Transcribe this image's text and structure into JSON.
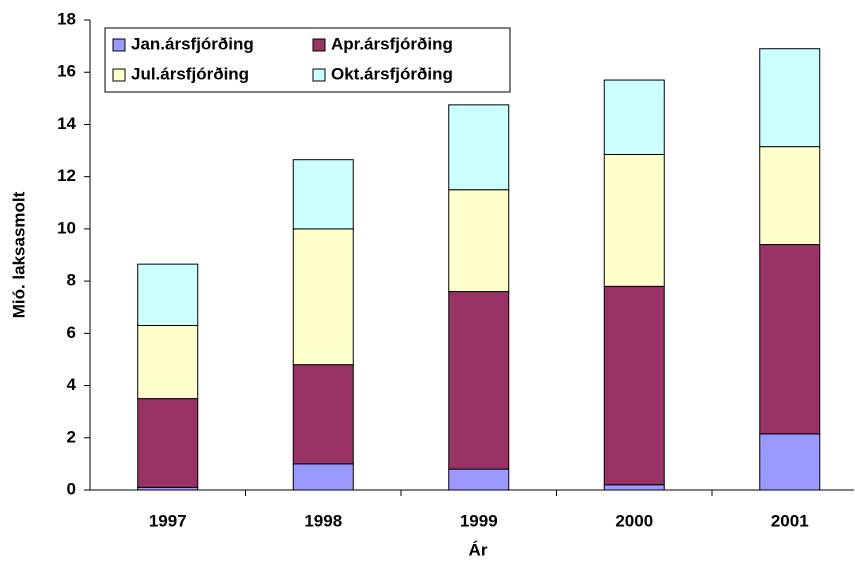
{
  "chart_data": {
    "type": "stacked_bar",
    "x_label": "Ár",
    "y_label": "Mió. laksasmolt",
    "categories": [
      "1997",
      "1998",
      "1999",
      "2000",
      "2001"
    ],
    "series": [
      {
        "name": "Jan.ársfjórðing",
        "color": "#9999ff",
        "values": [
          0.1,
          1.0,
          0.8,
          0.2,
          2.15
        ]
      },
      {
        "name": "Apr.ársfjórðing",
        "color": "#993366",
        "values": [
          3.4,
          3.8,
          6.8,
          7.6,
          7.25
        ]
      },
      {
        "name": "Jul.ársfjórðing",
        "color": "#ffffcc",
        "values": [
          2.8,
          5.2,
          3.9,
          5.05,
          3.75
        ]
      },
      {
        "name": "Okt.ársfjórðing",
        "color": "#ccffff",
        "values": [
          2.35,
          2.65,
          3.25,
          2.85,
          3.75
        ]
      }
    ],
    "ylim": [
      0,
      18
    ],
    "yticks": [
      0,
      2,
      4,
      6,
      8,
      10,
      12,
      14,
      16,
      18
    ],
    "grid": false,
    "legend": "top-left"
  }
}
